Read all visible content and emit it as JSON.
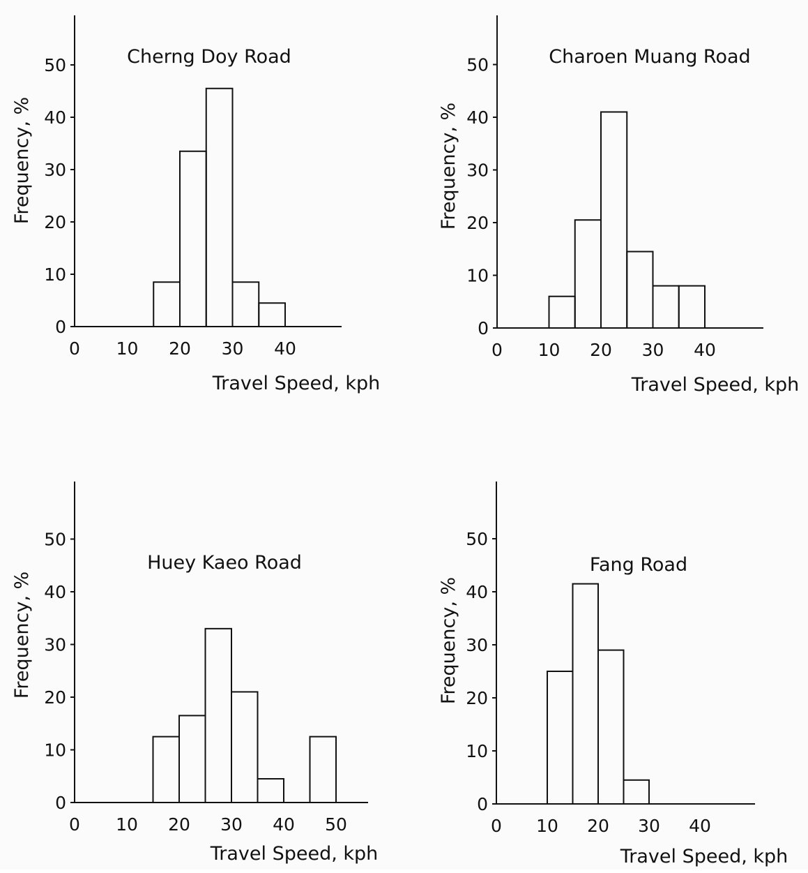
{
  "charts": [
    {
      "title": "Cherng Doy Road",
      "xlabel": "Travel Speed, kph",
      "ylabel": "Frequency, %",
      "chart_data": {
        "type": "bar",
        "bin_width": 5,
        "bins": [
          [
            15,
            20
          ],
          [
            20,
            25
          ],
          [
            25,
            30
          ],
          [
            30,
            35
          ],
          [
            35,
            40
          ]
        ],
        "values": [
          8.5,
          33.5,
          45.5,
          8.5,
          4.5
        ],
        "xticks": [
          0,
          10,
          20,
          30,
          40
        ],
        "yticks": [
          0,
          10,
          20,
          30,
          40,
          50
        ],
        "xlim": [
          0,
          50
        ],
        "ylim": [
          0,
          55
        ]
      }
    },
    {
      "title": "Charoen Muang Road",
      "xlabel": "Travel Speed, kph",
      "ylabel": "Frequency, %",
      "chart_data": {
        "type": "bar",
        "bin_width": 5,
        "bins": [
          [
            10,
            15
          ],
          [
            15,
            20
          ],
          [
            20,
            25
          ],
          [
            25,
            30
          ],
          [
            30,
            35
          ],
          [
            35,
            40
          ]
        ],
        "values": [
          6.0,
          20.5,
          41.0,
          14.5,
          8.0,
          8.0
        ],
        "xticks": [
          0,
          10,
          20,
          30,
          40
        ],
        "yticks": [
          0,
          10,
          20,
          30,
          40,
          50
        ],
        "xlim": [
          0,
          50
        ],
        "ylim": [
          0,
          55
        ]
      }
    },
    {
      "title": "Huey Kaeo Road",
      "xlabel": "Travel Speed, kph",
      "ylabel": "Frequency, %",
      "chart_data": {
        "type": "bar",
        "bin_width": 5,
        "bins": [
          [
            15,
            20
          ],
          [
            20,
            25
          ],
          [
            25,
            30
          ],
          [
            30,
            35
          ],
          [
            35,
            40
          ],
          [
            45,
            50
          ]
        ],
        "values": [
          12.5,
          16.5,
          33.0,
          21.0,
          4.5,
          12.5
        ],
        "xticks": [
          0,
          10,
          20,
          30,
          40,
          50
        ],
        "yticks": [
          0,
          10,
          20,
          30,
          40,
          50
        ],
        "xlim": [
          0,
          56
        ],
        "ylim": [
          0,
          55
        ]
      }
    },
    {
      "title": "Fang Road",
      "xlabel": "Travel Speed, kph",
      "ylabel": "Frequency, %",
      "chart_data": {
        "type": "bar",
        "bin_width": 5,
        "bins": [
          [
            10,
            15
          ],
          [
            15,
            20
          ],
          [
            20,
            25
          ],
          [
            25,
            30
          ]
        ],
        "values": [
          25.0,
          41.5,
          29.0,
          4.5
        ],
        "xticks": [
          0,
          10,
          20,
          30,
          40
        ],
        "yticks": [
          0,
          10,
          20,
          30,
          40,
          50
        ],
        "xlim": [
          0,
          50
        ],
        "ylim": [
          0,
          55
        ]
      }
    }
  ],
  "colors": {
    "ink": "#111111",
    "paper": "#fbfbfb"
  }
}
